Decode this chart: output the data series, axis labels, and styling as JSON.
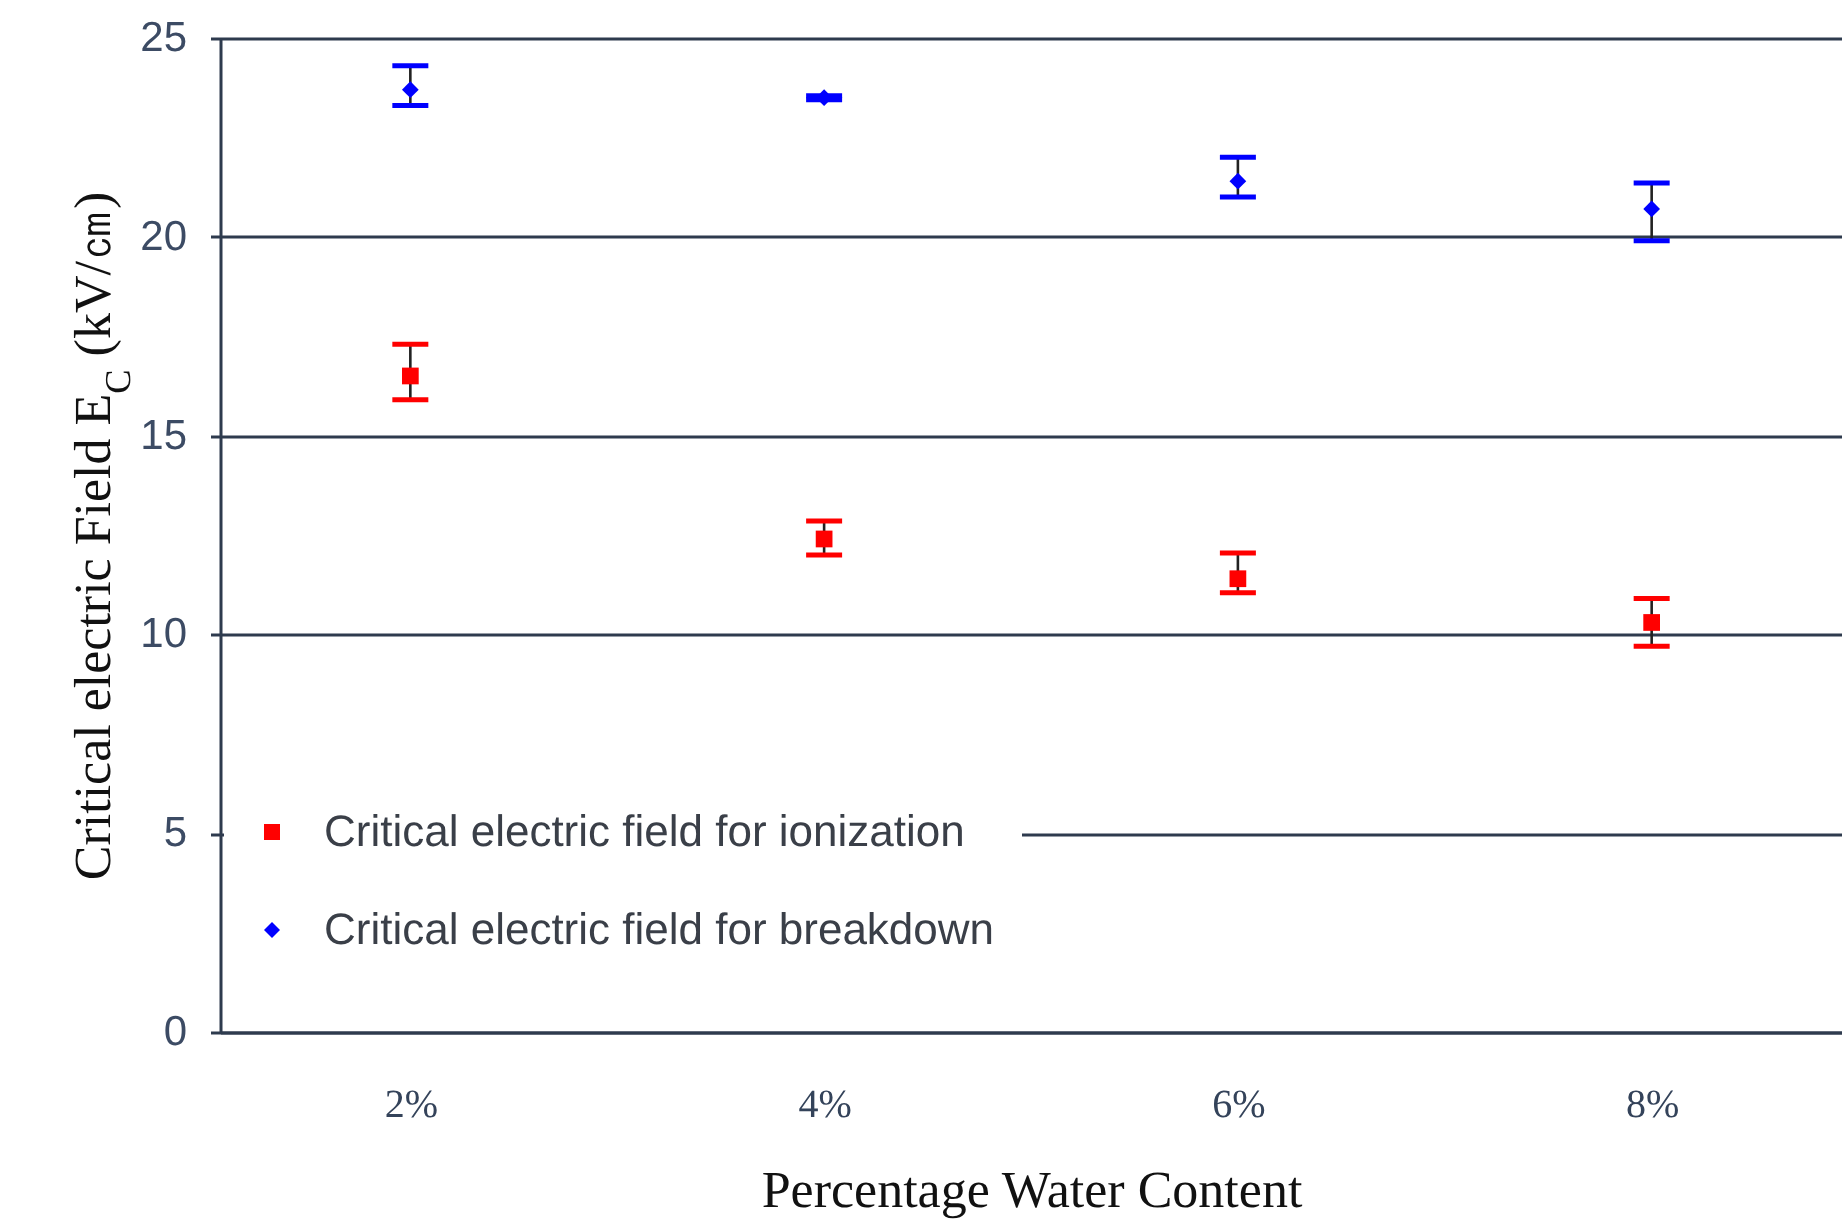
{
  "chart_data": {
    "type": "scatter",
    "xlabel": "Percentage Water Content",
    "ylabel": "Critical electric Field E$_{C}$ (kV/㎝)",
    "categories": [
      "2%",
      "4%",
      "6%",
      "8%"
    ],
    "series": [
      {
        "name": "Critical electric field for ionization",
        "color": "#ff0000",
        "marker": "square",
        "values": [
          16.5,
          12.4,
          11.4,
          10.3
        ],
        "errors": [
          [
            15.9,
            17.3
          ],
          [
            12.0,
            12.85
          ],
          [
            11.05,
            12.05
          ],
          [
            9.7,
            10.9
          ]
        ]
      },
      {
        "name": "Critical electric field for breakdown",
        "color": "#0000ff",
        "marker": "diamond",
        "values": [
          23.7,
          23.5,
          21.4,
          20.7
        ],
        "errors": [
          [
            23.3,
            24.3
          ],
          0.05,
          [
            21.0,
            22.0
          ],
          [
            19.9,
            21.35
          ]
        ]
      }
    ],
    "ylim": [
      0,
      25
    ],
    "yticks": [
      0,
      5,
      10,
      15,
      20,
      25
    ],
    "grid": "y",
    "legend": "bottom left"
  }
}
